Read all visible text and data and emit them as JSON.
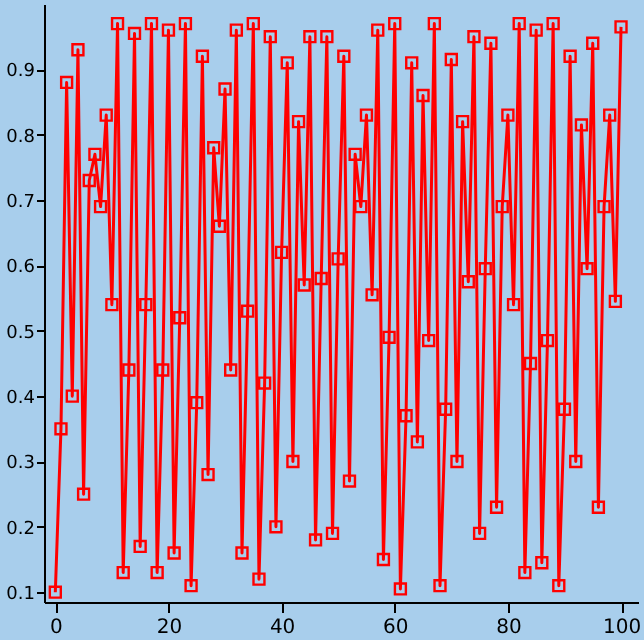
{
  "chart_data": {
    "type": "line",
    "marker": "square",
    "line_style": "solid",
    "grid": false,
    "xlim": [
      -2,
      103
    ],
    "xticks": [
      0,
      20,
      40,
      60,
      80,
      100
    ],
    "ylim": [
      0.085,
      1.0
    ],
    "yticks": [
      0.1,
      0.2,
      0.3,
      0.4,
      0.5,
      0.6,
      0.7,
      0.8,
      0.9
    ],
    "series": [
      {
        "color": "#ff0000",
        "x": [
          0,
          1,
          2,
          3,
          4,
          5,
          6,
          7,
          8,
          9,
          10,
          11,
          12,
          13,
          14,
          15,
          16,
          17,
          18,
          19,
          20,
          21,
          22,
          23,
          24,
          25,
          26,
          27,
          28,
          29,
          30,
          31,
          32,
          33,
          34,
          35,
          36,
          37,
          38,
          39,
          40,
          41,
          42,
          43,
          44,
          45,
          46,
          47,
          48,
          49,
          50,
          51,
          52,
          53,
          54,
          55,
          56,
          57,
          58,
          59,
          60,
          61,
          62,
          63,
          64,
          65,
          66,
          67,
          68,
          69,
          70,
          71,
          72,
          73,
          74,
          75,
          76,
          77,
          78,
          79,
          80,
          81,
          82,
          83,
          84,
          85,
          86,
          87,
          88,
          89,
          90,
          91,
          92,
          93,
          94,
          95,
          96,
          97,
          98,
          99,
          100
        ],
        "values": [
          0.1,
          0.35,
          0.88,
          0.4,
          0.93,
          0.25,
          0.73,
          0.77,
          0.69,
          0.83,
          0.54,
          0.97,
          0.13,
          0.44,
          0.955,
          0.17,
          0.54,
          0.97,
          0.13,
          0.44,
          0.96,
          0.16,
          0.52,
          0.97,
          0.11,
          0.39,
          0.92,
          0.28,
          0.78,
          0.66,
          0.87,
          0.44,
          0.96,
          0.16,
          0.53,
          0.97,
          0.12,
          0.42,
          0.95,
          0.2,
          0.62,
          0.91,
          0.3,
          0.82,
          0.57,
          0.95,
          0.18,
          0.58,
          0.95,
          0.19,
          0.61,
          0.92,
          0.27,
          0.77,
          0.69,
          0.83,
          0.555,
          0.96,
          0.15,
          0.49,
          0.97,
          0.105,
          0.37,
          0.91,
          0.33,
          0.86,
          0.485,
          0.97,
          0.11,
          0.38,
          0.915,
          0.3,
          0.82,
          0.575,
          0.95,
          0.19,
          0.595,
          0.94,
          0.23,
          0.69,
          0.83,
          0.54,
          0.97,
          0.13,
          0.45,
          0.96,
          0.145,
          0.485,
          0.97,
          0.11,
          0.38,
          0.92,
          0.3,
          0.815,
          0.595,
          0.94,
          0.23,
          0.69,
          0.83,
          0.545,
          0.965
        ]
      }
    ]
  }
}
